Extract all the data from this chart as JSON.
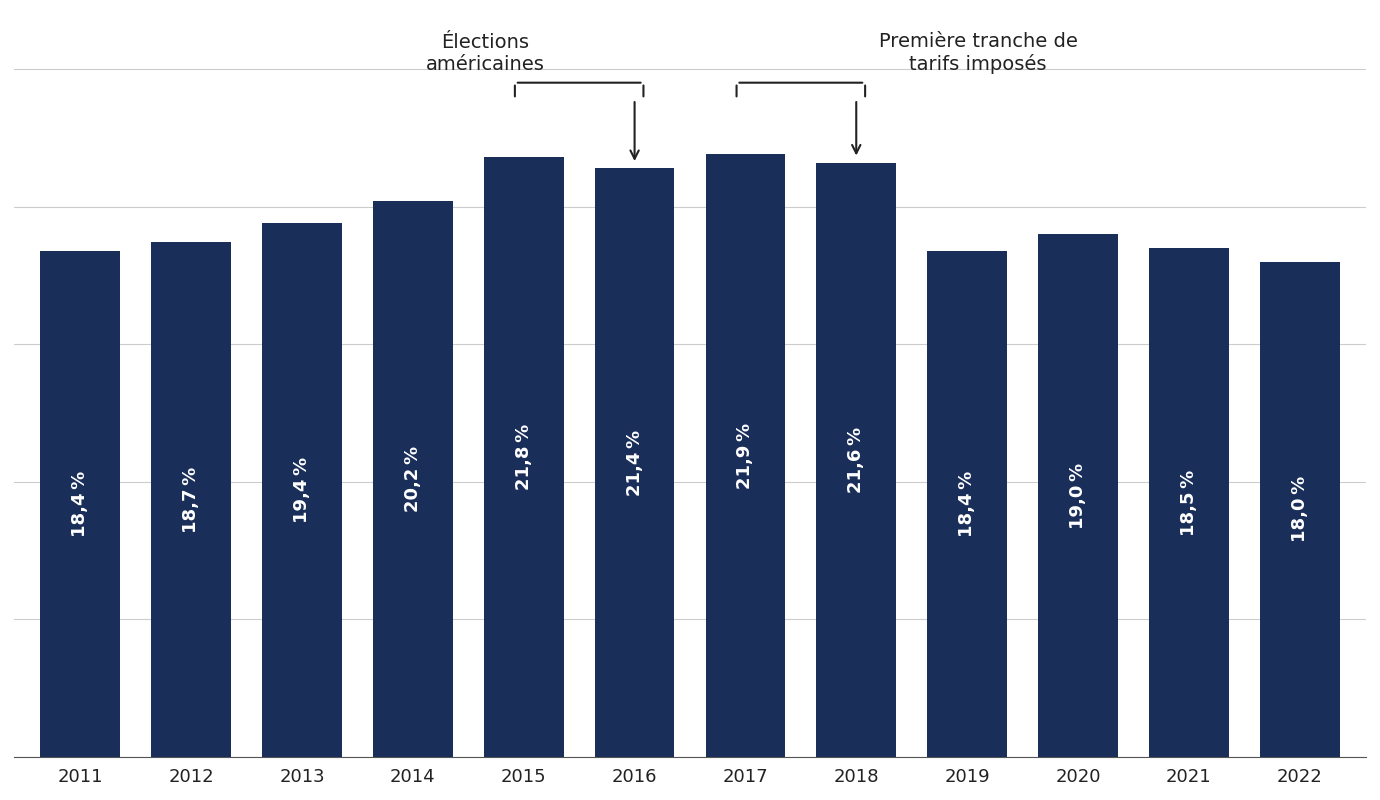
{
  "years": [
    2011,
    2012,
    2013,
    2014,
    2015,
    2016,
    2017,
    2018,
    2019,
    2020,
    2021,
    2022
  ],
  "values": [
    18.4,
    18.7,
    19.4,
    20.2,
    21.8,
    21.4,
    21.9,
    21.6,
    18.4,
    19.0,
    18.5,
    18.0
  ],
  "labels": [
    "18,4 %",
    "18,7 %",
    "19,4 %",
    "20,2 %",
    "21,8 %",
    "21,4 %",
    "21,9 %",
    "21,6 %",
    "18,4 %",
    "19,0 %",
    "18,5 %",
    "18,0 %"
  ],
  "bar_color": "#1a2e5a",
  "background_color": "#ffffff",
  "grid_color": "#cccccc",
  "text_color": "#ffffff",
  "annotation_color": "#222222",
  "ylim": [
    0,
    27
  ],
  "annotation1_text": "Élections\naméricaines",
  "annotation2_text": "Première tranche de\ntarifs imposés",
  "label_fontsize": 13,
  "tick_fontsize": 13,
  "annotation_fontsize": 14
}
